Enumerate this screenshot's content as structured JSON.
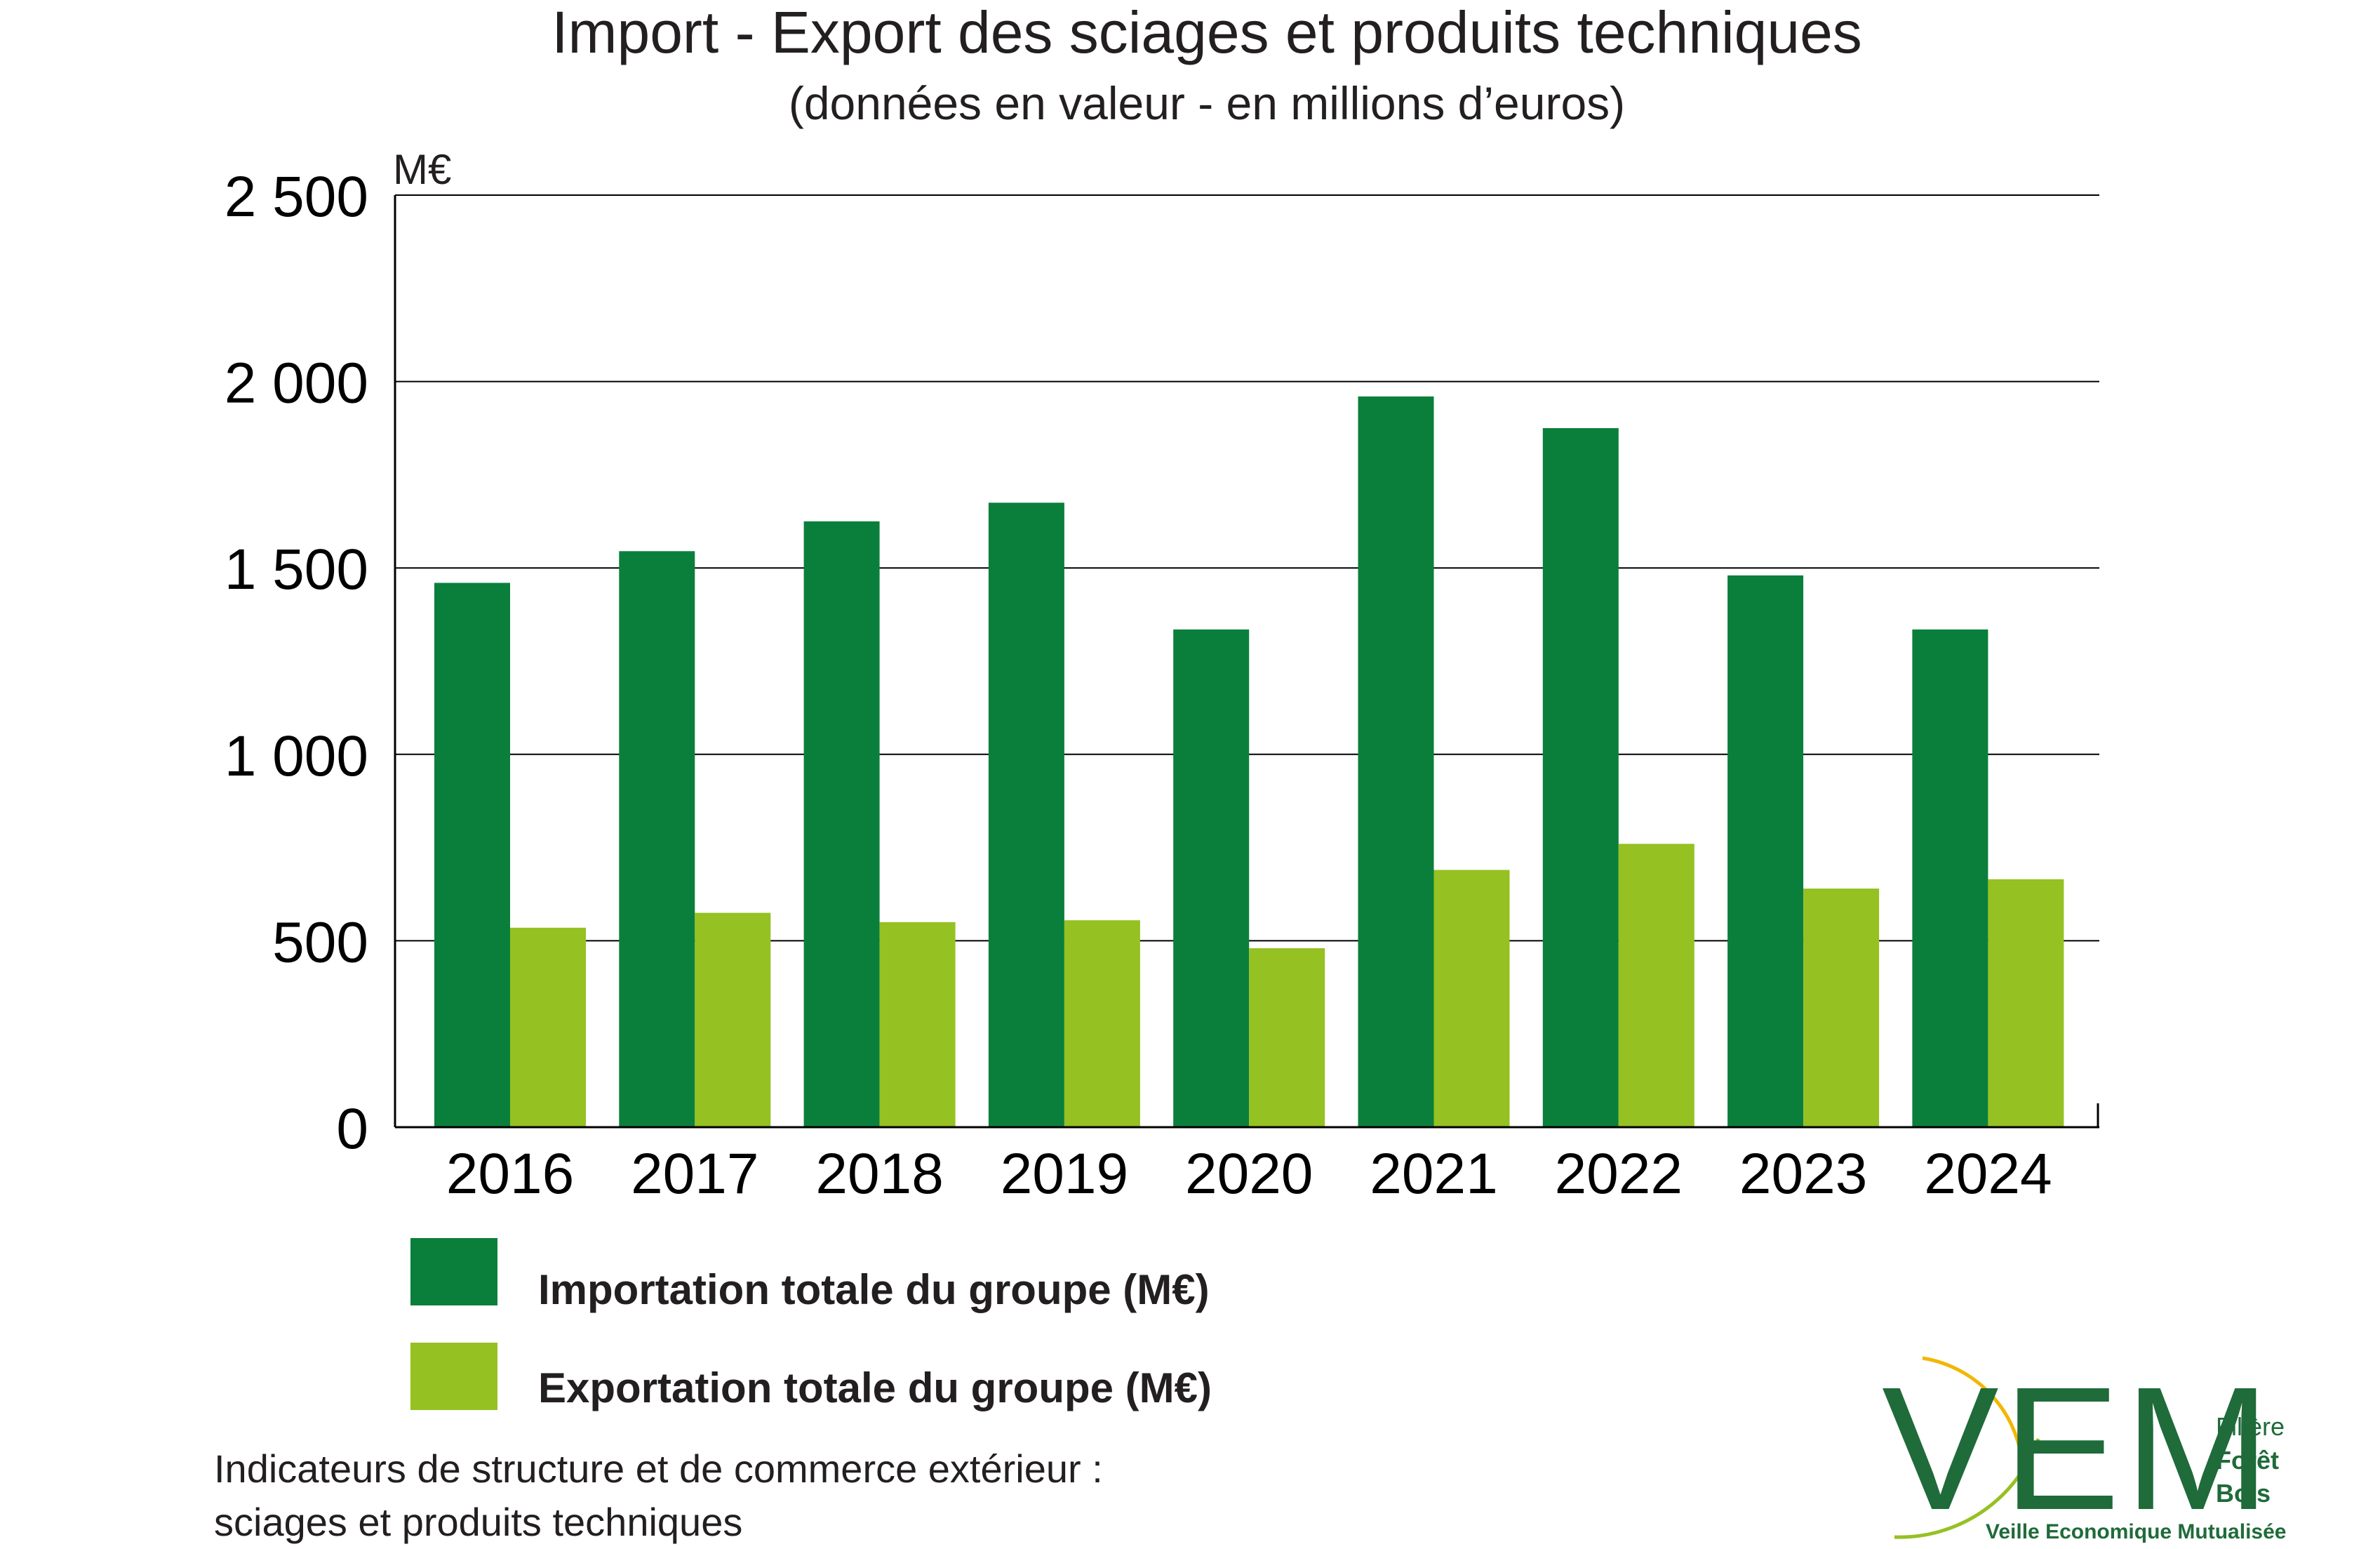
{
  "chart_data": {
    "type": "bar",
    "title": "Import - Export des sciages et produits techniques",
    "subtitle": "(données en valeur - en millions d’euros)",
    "ylabel": "M€",
    "xlabel": "",
    "ylim": [
      0,
      2500
    ],
    "yticks": [
      0,
      500,
      1000,
      1500,
      2000,
      2500
    ],
    "ytick_labels": [
      "0",
      "500",
      "1 000",
      "1 500",
      "2 000",
      "2 500"
    ],
    "grid": true,
    "legend_position": "bottom-left",
    "categories": [
      "2016",
      "2017",
      "2018",
      "2019",
      "2020",
      "2021",
      "2022",
      "2023",
      "2024"
    ],
    "series": [
      {
        "name": "Importation totale du groupe (M€)",
        "color": "#0a7f3b",
        "values": [
          1460,
          1545,
          1625,
          1675,
          1335,
          1960,
          1875,
          1480,
          1335
        ]
      },
      {
        "name": "Exportation totale du groupe (M€)",
        "color": "#95c122",
        "values": [
          535,
          575,
          550,
          555,
          480,
          690,
          760,
          640,
          665
        ]
      }
    ]
  },
  "footnote": {
    "line1": "Indicateurs de structure et de commerce extérieur :",
    "line2": "sciages et produits techniques"
  },
  "logo": {
    "letters": "VEM",
    "side_line1": "Filière",
    "side_line2": "Forêt",
    "side_line3": "Bois",
    "tagline": "Veille Economique Mutualisée",
    "color": "#1f6b3a",
    "accent_color": "#f2b705"
  }
}
